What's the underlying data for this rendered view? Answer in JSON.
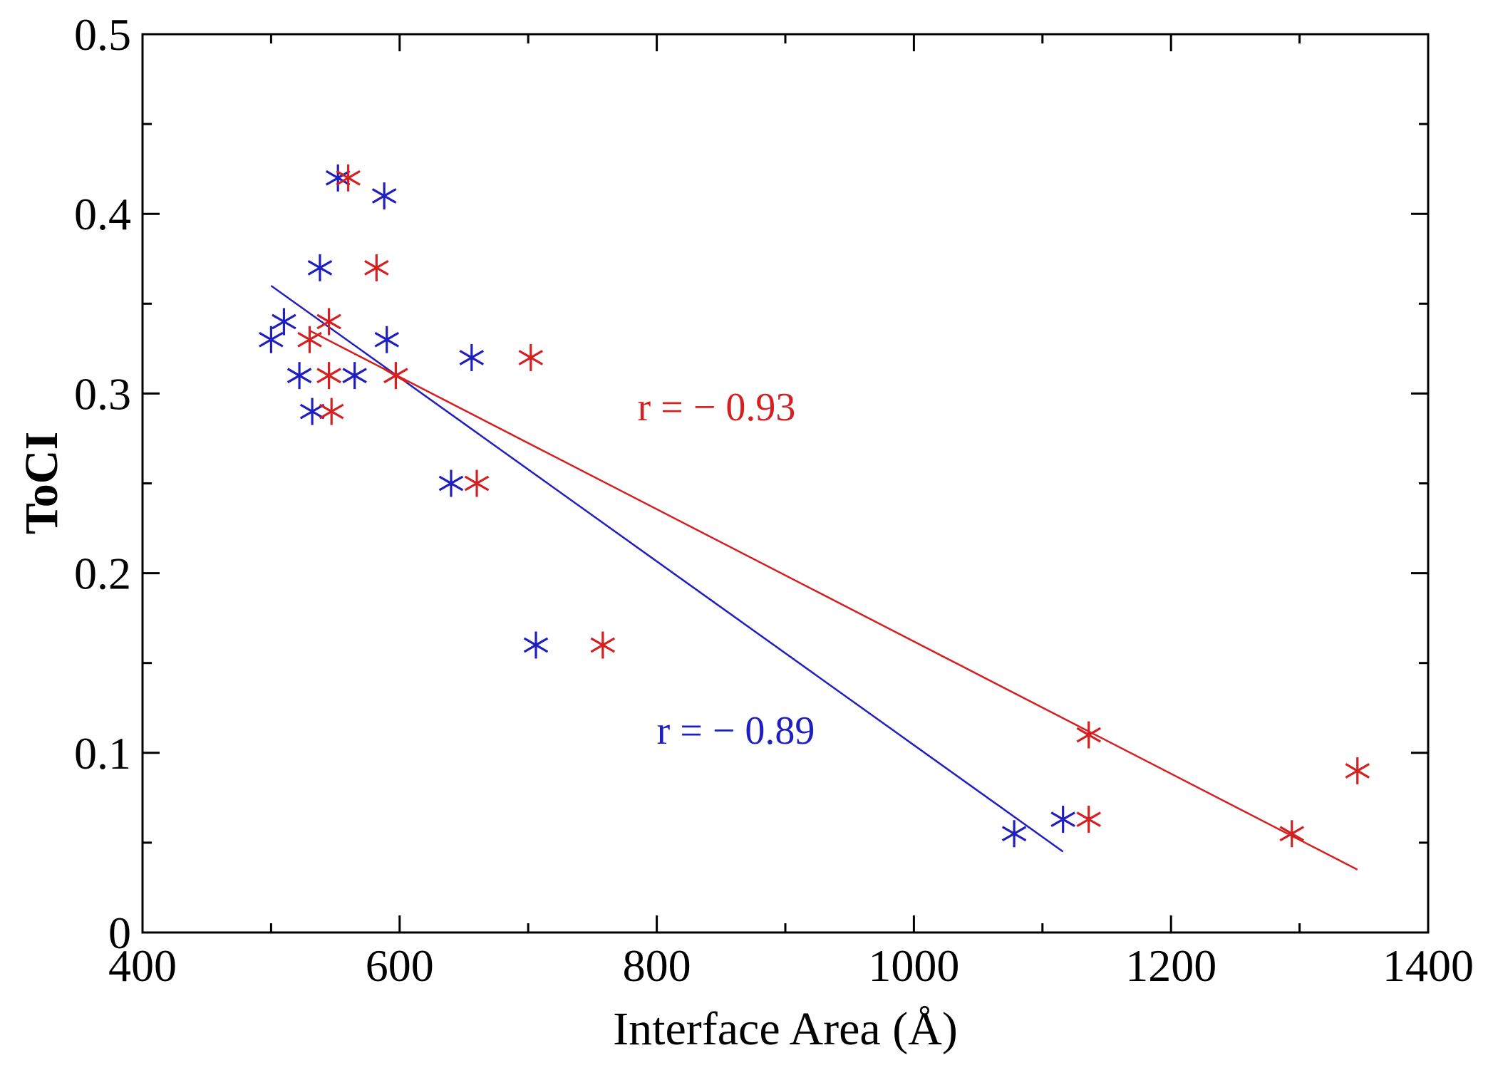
{
  "chart_data": {
    "type": "scatter",
    "title": "",
    "xlabel": "Interface Area (Å)",
    "ylabel": "ToCI",
    "xlim": [
      400,
      1400
    ],
    "ylim": [
      0,
      0.5
    ],
    "xticks": [
      400,
      600,
      800,
      1000,
      1200,
      1400
    ],
    "xtick_labels": [
      "400",
      "600",
      "800",
      "1000",
      "1200",
      "1400"
    ],
    "yticks": [
      0,
      0.1,
      0.2,
      0.3,
      0.4,
      0.5
    ],
    "ytick_labels": [
      "0",
      "0.1",
      "0.2",
      "0.3",
      "0.4",
      "0.5"
    ],
    "grid": false,
    "series": [
      {
        "name": "blue",
        "color": "#1f1fbf",
        "marker": "asterisk",
        "x": [
          500,
          510,
          522,
          532,
          538,
          552,
          565,
          588,
          590,
          640,
          656,
          706,
          1078,
          1116
        ],
        "y": [
          0.33,
          0.34,
          0.31,
          0.29,
          0.37,
          0.42,
          0.31,
          0.41,
          0.33,
          0.25,
          0.32,
          0.16,
          0.055,
          0.063
        ],
        "fit": {
          "x": [
            500,
            1116
          ],
          "y": [
            0.36,
            0.045
          ]
        },
        "annotation": {
          "text": "r = − 0.89",
          "x": 800,
          "y": 0.105
        }
      },
      {
        "name": "red",
        "color": "#d42020",
        "marker": "asterisk",
        "x": [
          530,
          545,
          545,
          547,
          560,
          582,
          597,
          660,
          702,
          758,
          1136,
          1136,
          1294,
          1345
        ],
        "y": [
          0.33,
          0.34,
          0.31,
          0.29,
          0.42,
          0.37,
          0.31,
          0.25,
          0.32,
          0.16,
          0.11,
          0.063,
          0.055,
          0.09
        ],
        "fit": {
          "x": [
            530,
            1345
          ],
          "y": [
            0.335,
            0.035
          ]
        },
        "annotation": {
          "text": "r = − 0.93",
          "x": 785,
          "y": 0.285
        }
      }
    ]
  }
}
